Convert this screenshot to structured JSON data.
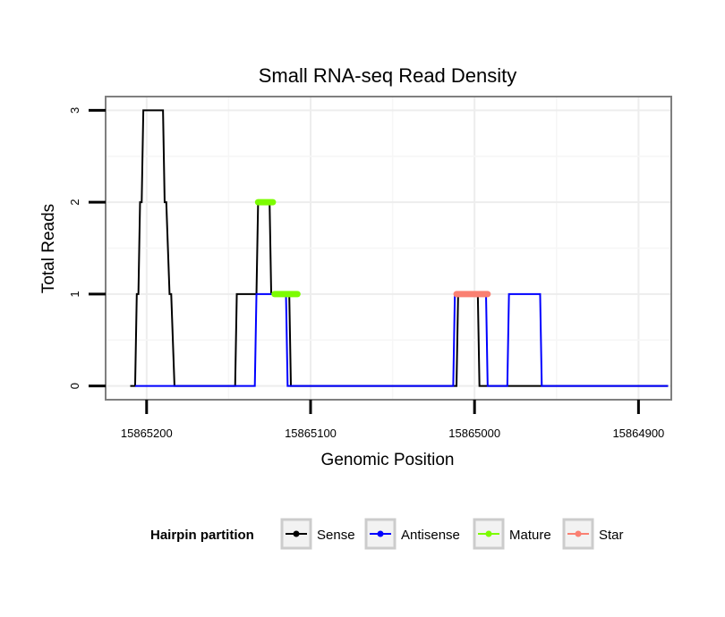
{
  "chart_data": {
    "type": "line",
    "title": "Small RNA-seq Read Density",
    "xlabel": "Genomic Position",
    "ylabel": "Total Reads",
    "xlim": [
      15865225,
      15864880
    ],
    "ylim": [
      -0.15,
      3.15
    ],
    "x_reversed": true,
    "grid": true,
    "x_ticks": [
      15865200,
      15865100,
      15865000,
      15864900
    ],
    "x_tick_labels": [
      "15865200",
      "15865100",
      "15865000",
      "15864900"
    ],
    "y_ticks": [
      0,
      1,
      2,
      3
    ],
    "y_tick_labels": [
      "0",
      "1",
      "2",
      "3"
    ],
    "legend": {
      "title": "Hairpin partition",
      "position": "bottom",
      "entries": [
        {
          "label": "Sense",
          "color": "#000000"
        },
        {
          "label": "Antisense",
          "color": "#0000ff"
        },
        {
          "label": "Mature",
          "color": "#7cfc00"
        },
        {
          "label": "Star",
          "color": "#fa8072"
        }
      ]
    },
    "series": [
      {
        "name": "Sense",
        "color": "#000000",
        "points": [
          [
            15865210,
            0
          ],
          [
            15865207,
            0
          ],
          [
            15865206,
            1
          ],
          [
            15865205,
            1
          ],
          [
            15865204,
            2
          ],
          [
            15865203,
            2
          ],
          [
            15865202,
            3
          ],
          [
            15865201,
            3
          ],
          [
            15865190,
            3
          ],
          [
            15865189,
            2
          ],
          [
            15865188,
            2
          ],
          [
            15865186,
            1
          ],
          [
            15865185,
            1
          ],
          [
            15865183,
            0
          ],
          [
            15865146,
            0
          ],
          [
            15865145,
            1
          ],
          [
            15865133,
            1
          ],
          [
            15865132,
            2
          ],
          [
            15865125,
            2
          ],
          [
            15865124,
            1
          ],
          [
            15865113,
            1
          ],
          [
            15865112,
            0
          ],
          [
            15865011,
            0
          ],
          [
            15865010,
            1
          ],
          [
            15864998,
            1
          ],
          [
            15864997,
            0
          ],
          [
            15864882,
            0
          ]
        ]
      },
      {
        "name": "Antisense",
        "color": "#0000ff",
        "points": [
          [
            15865207,
            0
          ],
          [
            15865134,
            0
          ],
          [
            15865133,
            1
          ],
          [
            15865115,
            1
          ],
          [
            15865114,
            0
          ],
          [
            15865013,
            0
          ],
          [
            15865012,
            1
          ],
          [
            15864993,
            1
          ],
          [
            15864992,
            0
          ],
          [
            15864980,
            0
          ],
          [
            15864979,
            1
          ],
          [
            15864960,
            1
          ],
          [
            15864959,
            0
          ],
          [
            15864882,
            0
          ]
        ]
      },
      {
        "name": "Mature",
        "color": "#7cfc00",
        "segments": [
          {
            "x": [
              15865132,
              15865123
            ],
            "y": 2
          },
          {
            "x": [
              15865122,
              15865108
            ],
            "y": 1
          }
        ]
      },
      {
        "name": "Star",
        "color": "#fa8072",
        "segments": [
          {
            "x": [
              15865011,
              15864992
            ],
            "y": 1
          }
        ]
      }
    ]
  }
}
